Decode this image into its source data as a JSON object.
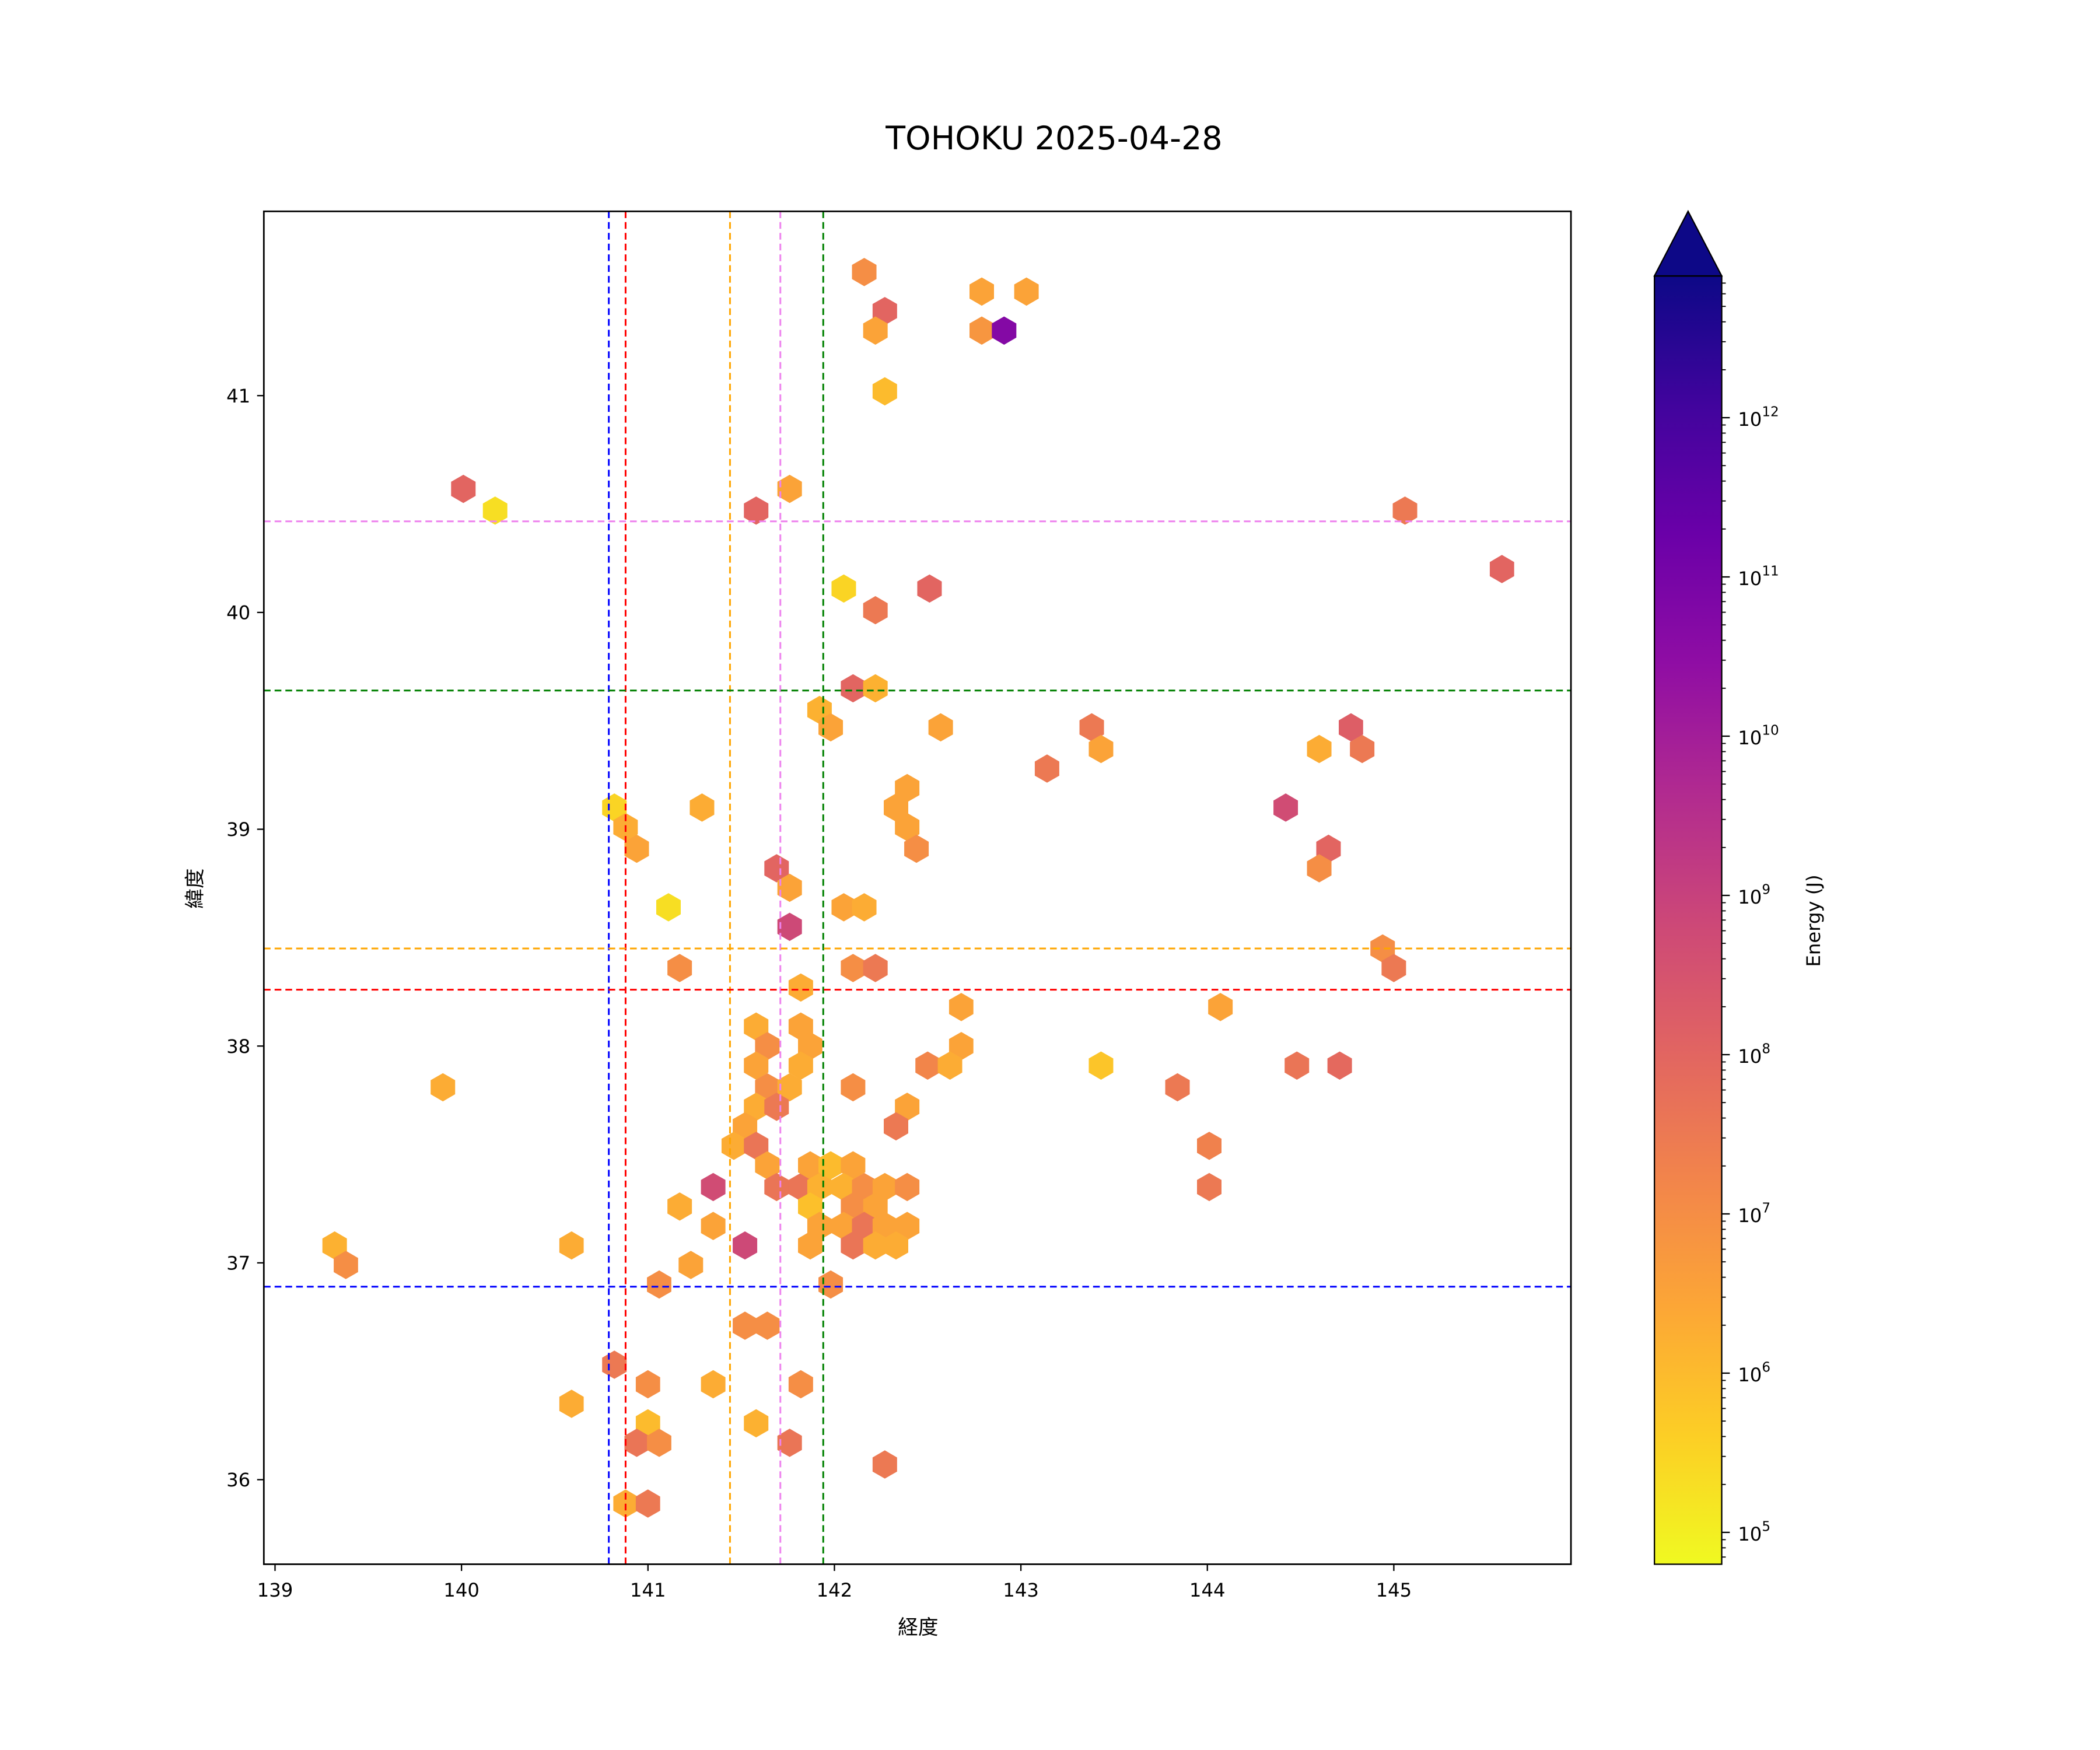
{
  "chart_data": {
    "type": "hexbin",
    "title": "TOHOKU 2025-04-28",
    "xlabel": "経度",
    "ylabel": "緯度",
    "xlim": [
      138.94,
      145.95
    ],
    "ylim": [
      35.61,
      41.85
    ],
    "xticks": [
      139,
      140,
      141,
      142,
      143,
      144,
      145
    ],
    "yticks": [
      36,
      37,
      38,
      39,
      40,
      41
    ],
    "colorbar": {
      "label": "Energy (J)",
      "scale": "log",
      "log10_range": [
        4.8,
        12.89
      ],
      "extend": "max",
      "colormap": "plasma_r",
      "tick_exponents": [
        5,
        6,
        7,
        8,
        9,
        10,
        11,
        12
      ],
      "tick_base": "10"
    },
    "vlines": [
      {
        "lon": 140.79,
        "color": "#0000ff"
      },
      {
        "lon": 140.88,
        "color": "#ff0000"
      },
      {
        "lon": 141.44,
        "color": "#ffa500"
      },
      {
        "lon": 141.71,
        "color": "#ee82ee"
      },
      {
        "lon": 141.94,
        "color": "#008000"
      }
    ],
    "hlines": [
      {
        "lat": 40.42,
        "color": "#ee82ee"
      },
      {
        "lat": 39.64,
        "color": "#008000"
      },
      {
        "lat": 38.45,
        "color": "#ffa500"
      },
      {
        "lat": 38.26,
        "color": "#ff0000"
      },
      {
        "lat": 36.89,
        "color": "#0000ff"
      }
    ],
    "point_fields": [
      "lon",
      "lat",
      "log10_energy_J"
    ],
    "points": [
      [
        142.16,
        41.57,
        7.0
      ],
      [
        142.79,
        41.48,
        6.5
      ],
      [
        143.03,
        41.48,
        6.5
      ],
      [
        142.27,
        41.39,
        8.0
      ],
      [
        142.22,
        41.3,
        6.5
      ],
      [
        142.79,
        41.3,
        6.8
      ],
      [
        142.91,
        41.3,
        10.7
      ],
      [
        142.27,
        41.02,
        6.0
      ],
      [
        140.01,
        40.57,
        8.0
      ],
      [
        140.18,
        40.47,
        5.3
      ],
      [
        141.76,
        40.57,
        6.5
      ],
      [
        141.58,
        40.47,
        8.0
      ],
      [
        145.06,
        40.47,
        7.5
      ],
      [
        145.58,
        40.2,
        8.0
      ],
      [
        142.05,
        40.11,
        5.5
      ],
      [
        142.51,
        40.11,
        8.0
      ],
      [
        142.22,
        40.01,
        7.5
      ],
      [
        142.1,
        39.65,
        8.0
      ],
      [
        142.22,
        39.65,
        6.2
      ],
      [
        141.92,
        39.55,
        6.2
      ],
      [
        141.98,
        39.47,
        6.5
      ],
      [
        142.57,
        39.47,
        6.5
      ],
      [
        143.38,
        39.47,
        7.5
      ],
      [
        143.43,
        39.37,
        6.5
      ],
      [
        143.14,
        39.28,
        7.5
      ],
      [
        144.77,
        39.47,
        8.2
      ],
      [
        144.83,
        39.37,
        7.5
      ],
      [
        144.6,
        39.37,
        6.3
      ],
      [
        144.42,
        39.1,
        8.7
      ],
      [
        144.65,
        38.91,
        8.0
      ],
      [
        144.6,
        38.82,
        7.0
      ],
      [
        142.39,
        39.19,
        6.5
      ],
      [
        142.33,
        39.1,
        6.5
      ],
      [
        142.39,
        39.01,
        6.5
      ],
      [
        142.44,
        38.91,
        7.0
      ],
      [
        140.82,
        39.1,
        5.5
      ],
      [
        140.88,
        39.01,
        6.3
      ],
      [
        140.94,
        38.91,
        6.5
      ],
      [
        141.29,
        39.1,
        6.3
      ],
      [
        141.11,
        38.64,
        5.3
      ],
      [
        141.69,
        38.82,
        8.0
      ],
      [
        141.76,
        38.73,
        6.5
      ],
      [
        141.76,
        38.55,
        8.8
      ],
      [
        142.05,
        38.64,
        6.5
      ],
      [
        142.16,
        38.64,
        6.3
      ],
      [
        141.17,
        38.36,
        7.0
      ],
      [
        142.1,
        38.36,
        7.0
      ],
      [
        142.22,
        38.36,
        7.5
      ],
      [
        141.82,
        38.27,
        6.3
      ],
      [
        142.68,
        38.18,
        6.5
      ],
      [
        142.68,
        38.0,
        6.5
      ],
      [
        144.07,
        38.18,
        6.5
      ],
      [
        144.94,
        38.45,
        7.0
      ],
      [
        145.0,
        38.36,
        7.5
      ],
      [
        141.58,
        38.09,
        6.3
      ],
      [
        141.64,
        38.0,
        7.0
      ],
      [
        141.58,
        37.91,
        6.5
      ],
      [
        141.82,
        38.09,
        6.5
      ],
      [
        141.87,
        38.0,
        6.5
      ],
      [
        141.82,
        37.91,
        6.3
      ],
      [
        141.64,
        37.81,
        7.0
      ],
      [
        141.76,
        37.81,
        6.3
      ],
      [
        141.58,
        37.72,
        6.3
      ],
      [
        141.69,
        37.72,
        7.5
      ],
      [
        141.52,
        37.63,
        6.5
      ],
      [
        141.46,
        37.54,
        6.3
      ],
      [
        141.58,
        37.54,
        7.6
      ],
      [
        141.64,
        37.45,
        6.5
      ],
      [
        141.35,
        37.35,
        8.7
      ],
      [
        141.69,
        37.35,
        7.6
      ],
      [
        141.82,
        37.35,
        7.6
      ],
      [
        141.87,
        37.45,
        6.5
      ],
      [
        141.98,
        37.45,
        6.0
      ],
      [
        142.1,
        37.45,
        6.5
      ],
      [
        141.92,
        37.35,
        6.2
      ],
      [
        142.05,
        37.35,
        6.2
      ],
      [
        142.16,
        37.35,
        7.0
      ],
      [
        142.27,
        37.35,
        6.5
      ],
      [
        142.39,
        37.35,
        7.0
      ],
      [
        141.87,
        37.26,
        5.9
      ],
      [
        142.1,
        37.26,
        7.0
      ],
      [
        142.22,
        37.26,
        6.5
      ],
      [
        141.92,
        37.17,
        6.5
      ],
      [
        142.05,
        37.17,
        6.5
      ],
      [
        142.16,
        37.17,
        7.6
      ],
      [
        142.27,
        37.17,
        6.5
      ],
      [
        142.39,
        37.17,
        6.5
      ],
      [
        141.87,
        37.08,
        6.5
      ],
      [
        142.1,
        37.08,
        7.6
      ],
      [
        142.22,
        37.08,
        6.3
      ],
      [
        142.33,
        37.08,
        6.3
      ],
      [
        141.52,
        37.08,
        8.8
      ],
      [
        141.98,
        36.9,
        7.0
      ],
      [
        141.17,
        37.26,
        6.3
      ],
      [
        141.35,
        37.17,
        6.5
      ],
      [
        141.23,
        36.99,
        6.5
      ],
      [
        141.06,
        36.9,
        7.0
      ],
      [
        142.5,
        37.91,
        7.2
      ],
      [
        142.62,
        37.91,
        6.3
      ],
      [
        142.1,
        37.81,
        7.0
      ],
      [
        142.39,
        37.72,
        6.5
      ],
      [
        142.33,
        37.63,
        7.5
      ],
      [
        143.43,
        37.91,
        5.8
      ],
      [
        143.84,
        37.81,
        7.5
      ],
      [
        144.01,
        37.54,
        7.3
      ],
      [
        144.01,
        37.35,
        7.5
      ],
      [
        144.48,
        37.91,
        7.6
      ],
      [
        144.71,
        37.91,
        7.9
      ],
      [
        139.9,
        37.81,
        6.3
      ],
      [
        139.32,
        37.08,
        6.2
      ],
      [
        139.38,
        36.99,
        7.0
      ],
      [
        140.59,
        37.08,
        6.3
      ],
      [
        141.52,
        36.71,
        7.0
      ],
      [
        141.64,
        36.71,
        7.0
      ],
      [
        140.82,
        36.53,
        7.5
      ],
      [
        141.0,
        36.44,
        7.0
      ],
      [
        141.35,
        36.44,
        6.3
      ],
      [
        141.82,
        36.44,
        7.0
      ],
      [
        140.59,
        36.35,
        6.3
      ],
      [
        141.0,
        36.26,
        6.0
      ],
      [
        141.58,
        36.26,
        6.2
      ],
      [
        140.94,
        36.17,
        7.6
      ],
      [
        141.06,
        36.17,
        7.0
      ],
      [
        141.76,
        36.17,
        7.6
      ],
      [
        142.27,
        36.07,
        7.5
      ],
      [
        140.88,
        35.89,
        6.3
      ],
      [
        141.0,
        35.89,
        7.5
      ]
    ]
  }
}
